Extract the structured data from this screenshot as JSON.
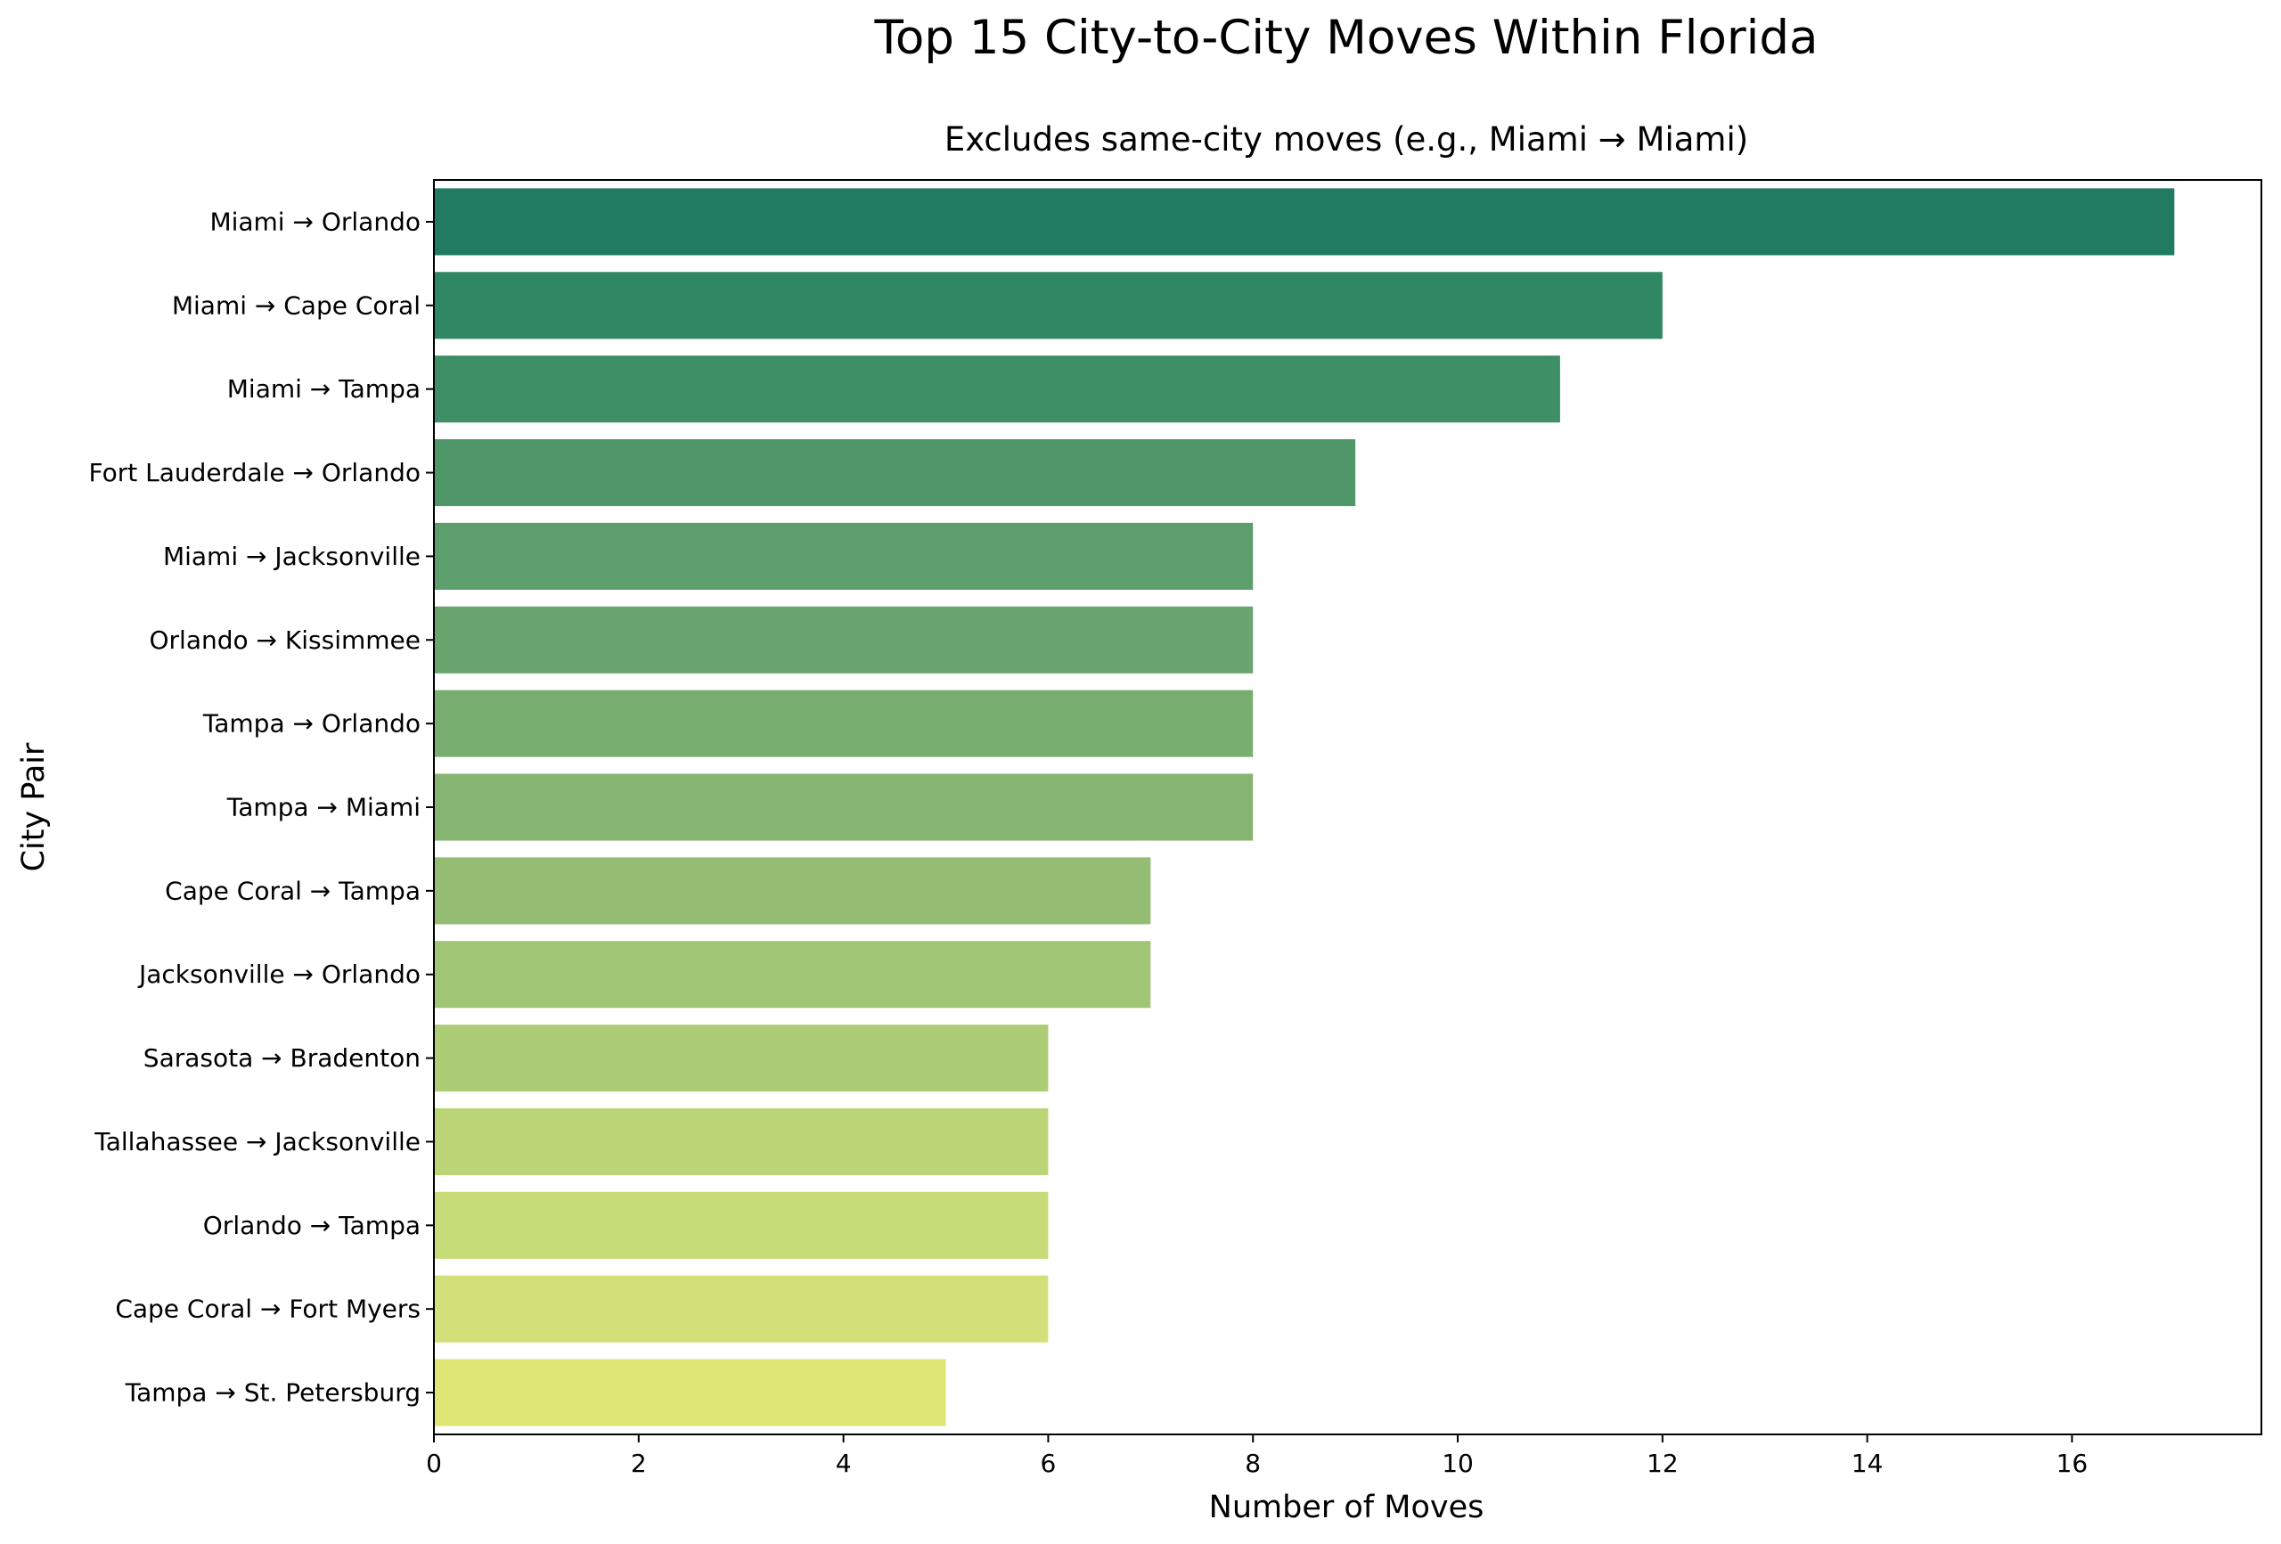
{
  "chart_data": {
    "type": "bar",
    "orientation": "horizontal",
    "title": "Top 15 City-to-City Moves Within Florida",
    "subtitle": "Excludes same-city moves (e.g., Miami → Miami)",
    "xlabel": "Number of Moves",
    "ylabel": "City Pair",
    "xlim": [
      0,
      17.85
    ],
    "xticks": [
      "0",
      "2",
      "4",
      "6",
      "8",
      "10",
      "12",
      "14",
      "16"
    ],
    "grid": false,
    "categories": [
      "Miami → Orlando",
      "Miami → Cape Coral",
      "Miami → Tampa",
      "Fort Lauderdale → Orlando",
      "Miami → Jacksonville",
      "Orlando → Kissimmee",
      "Tampa → Orlando",
      "Tampa → Miami",
      "Cape Coral → Tampa",
      "Jacksonville → Orlando",
      "Sarasota → Bradenton",
      "Tallahassee → Jacksonville",
      "Orlando → Tampa",
      "Cape Coral → Fort Myers",
      "Tampa → St. Petersburg"
    ],
    "values": [
      17,
      12,
      11,
      9,
      8,
      8,
      8,
      8,
      7,
      7,
      6,
      6,
      6,
      6,
      5
    ],
    "colors": [
      "#207b62",
      "#2f8863",
      "#3e8f66",
      "#4f9668",
      "#5c9e6c",
      "#6aa56f",
      "#79ae71",
      "#86b572",
      "#94bd73",
      "#a0c574",
      "#adcc76",
      "#bad476",
      "#c5dc78",
      "#d3e07a",
      "#dfe676"
    ]
  }
}
